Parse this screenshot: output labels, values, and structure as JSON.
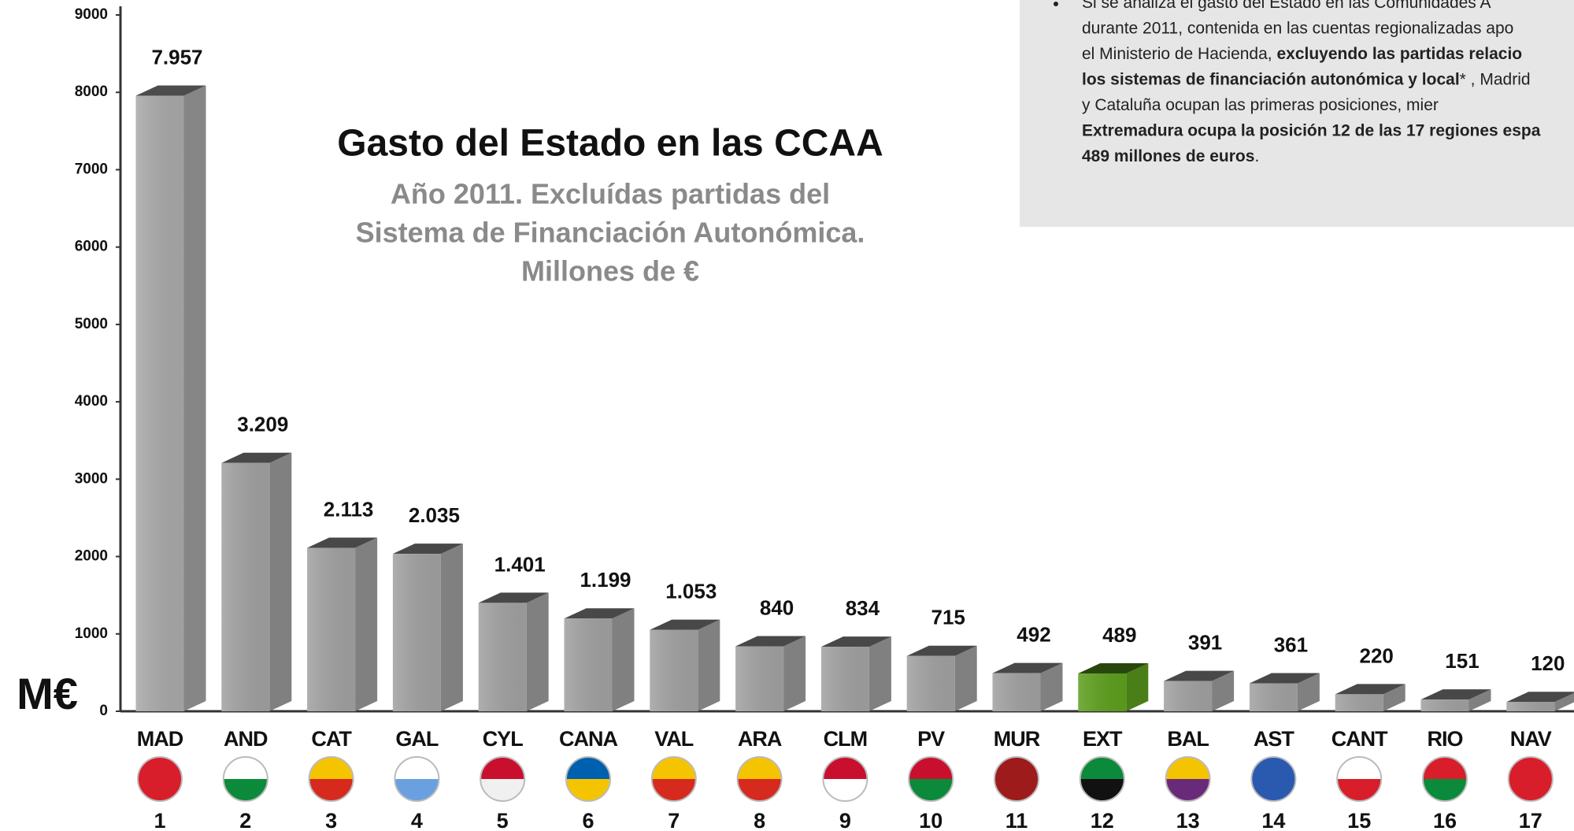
{
  "chart_data": {
    "type": "bar3d",
    "title": "Gasto del Estado en las CCAA",
    "subtitle": [
      "Año 2011. Excluídas partidas del",
      "Sistema de Financiación Autonómica.",
      "Millones de €"
    ],
    "ylabel": "M€",
    "categories": [
      "MAD",
      "AND",
      "CAT",
      "GAL",
      "CYL",
      "CANA",
      "VAL",
      "ARA",
      "CLM",
      "PV",
      "MUR",
      "EXT",
      "BAL",
      "AST",
      "CANT",
      "RIO",
      "NAV"
    ],
    "ranks": [
      1,
      2,
      3,
      4,
      5,
      6,
      7,
      8,
      9,
      10,
      11,
      12,
      13,
      14,
      15,
      16,
      17
    ],
    "values": [
      7957,
      3209,
      2113,
      2035,
      1401,
      1199,
      1053,
      840,
      834,
      715,
      492,
      489,
      391,
      361,
      220,
      151,
      120
    ],
    "value_labels": [
      "7.957",
      "3.209",
      "2.113",
      "2.035",
      "1.401",
      "1.199",
      "1.053",
      "840",
      "834",
      "715",
      "492",
      "489",
      "391",
      "361",
      "220",
      "151",
      "120"
    ],
    "colors": [
      "#a8a8a8",
      "#a0a0a0",
      "#a0a0a0",
      "#a0a0a0",
      "#a0a0a0",
      "#a0a0a0",
      "#a0a0a0",
      "#a0a0a0",
      "#a0a0a0",
      "#a0a0a0",
      "#a0a0a0",
      "#5c9e1c",
      "#a0a0a0",
      "#a0a0a0",
      "#a0a0a0",
      "#a0a0a0",
      "#a0a0a0"
    ],
    "ylim": [
      0,
      9000
    ],
    "yticks": [
      0,
      1000,
      2000,
      3000,
      4000,
      5000,
      6000,
      7000,
      8000,
      9000
    ],
    "grid": false,
    "note": {
      "lines": [
        [
          {
            "text": "Si se analiza el gasto del Estado en las Comunidades A",
            "bold": false
          }
        ],
        [
          {
            "text": "durante 2011, contenida en las cuentas regionalizadas apo",
            "bold": false
          }
        ],
        [
          {
            "text": "el Ministerio de Hacienda, ",
            "bold": false
          },
          {
            "text": "excluyendo las partidas relacio",
            "bold": true
          }
        ],
        [
          {
            "text": "los sistemas de financiación autonómica y local",
            "bold": true
          },
          {
            "text": "* , Madrid",
            "bold": false
          }
        ],
        [
          {
            "text": "y Cataluña ocupan las primeras posiciones, mier",
            "bold": false
          }
        ],
        [
          {
            "text": "Extremadura ocupa la posición 12 de las 17 regiones espa",
            "bold": true
          }
        ],
        [
          {
            "text": "489 millones de euros",
            "bold": true
          },
          {
            "text": ".",
            "bold": false
          }
        ]
      ]
    }
  }
}
